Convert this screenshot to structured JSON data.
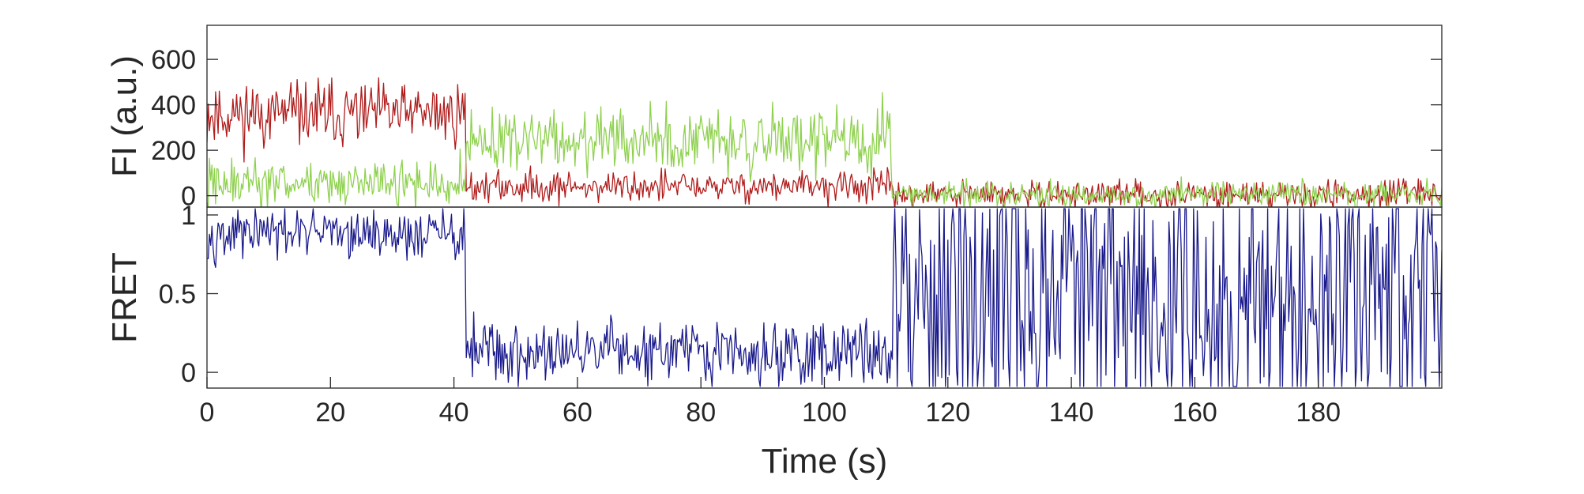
{
  "chart_data": [
    {
      "type": "line",
      "panel": "top",
      "ylabel": "FI (a.u.)",
      "xlabel": "",
      "xlim": [
        0,
        200
      ],
      "ylim": [
        -50,
        750
      ],
      "yticks": [
        0,
        200,
        400,
        600
      ],
      "ytick_labels": [
        "0",
        "200",
        "400",
        "600"
      ],
      "grid": false,
      "series": [
        {
          "color": "#b01c1c",
          "segments": [
            {
              "x": [
                0,
                42
              ],
              "mean": 360,
              "noise": 70
            },
            {
              "x": [
                42,
                111
              ],
              "mean": 40,
              "noise": 35
            },
            {
              "x": [
                111,
                200
              ],
              "mean": 5,
              "noise": 30
            }
          ]
        },
        {
          "color": "#8fd14f",
          "segments": [
            {
              "x": [
                0,
                42
              ],
              "mean": 50,
              "noise": 55
            },
            {
              "x": [
                42,
                111
              ],
              "mean": 240,
              "noise": 70
            },
            {
              "x": [
                111,
                200
              ],
              "mean": 5,
              "noise": 30
            }
          ]
        }
      ]
    },
    {
      "type": "line",
      "panel": "bottom",
      "ylabel": "FRET",
      "xlabel": "Time (s)",
      "xlim": [
        0,
        200
      ],
      "ylim": [
        -0.1,
        1.05
      ],
      "yticks": [
        0,
        0.5,
        1
      ],
      "ytick_labels": [
        "0",
        "0.5",
        "1"
      ],
      "xticks": [
        0,
        20,
        40,
        60,
        80,
        100,
        120,
        140,
        160,
        180
      ],
      "xtick_labels": [
        "0",
        "20",
        "40",
        "60",
        "80",
        "100",
        "120",
        "140",
        "160",
        "180"
      ],
      "grid": false,
      "series": [
        {
          "color": "#1a1a8c",
          "segments": [
            {
              "x": [
                0,
                42
              ],
              "mean": 0.88,
              "noise": 0.08
            },
            {
              "x": [
                42,
                111
              ],
              "mean": 0.12,
              "noise": 0.1
            },
            {
              "x": [
                111,
                200
              ],
              "mean": 0.5,
              "noise": 0.55
            }
          ]
        }
      ]
    }
  ]
}
